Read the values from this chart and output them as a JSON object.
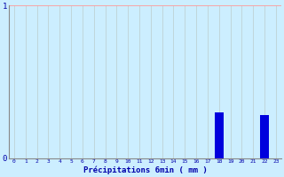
{
  "xlabel": "Précipitations 6min ( mm )",
  "ylabel": "",
  "categories": [
    0,
    1,
    2,
    3,
    4,
    5,
    6,
    7,
    8,
    9,
    10,
    11,
    12,
    13,
    14,
    15,
    16,
    17,
    18,
    19,
    20,
    21,
    22,
    23
  ],
  "values": [
    0,
    0,
    0,
    0,
    0,
    0,
    0,
    0,
    0,
    0,
    0,
    0,
    0,
    0,
    0,
    0,
    0,
    0,
    0.3,
    0,
    0,
    0,
    0.28,
    0
  ],
  "bar_color": "#0000dd",
  "background_color": "#cceeff",
  "grid_color_h": "#ff9999",
  "grid_color_v": "#bbcccc",
  "text_color": "#0000aa",
  "axis_color": "#888888",
  "ylim": [
    0,
    1.0
  ],
  "yticks": [
    0,
    1
  ],
  "xlim": [
    -0.5,
    23.5
  ]
}
